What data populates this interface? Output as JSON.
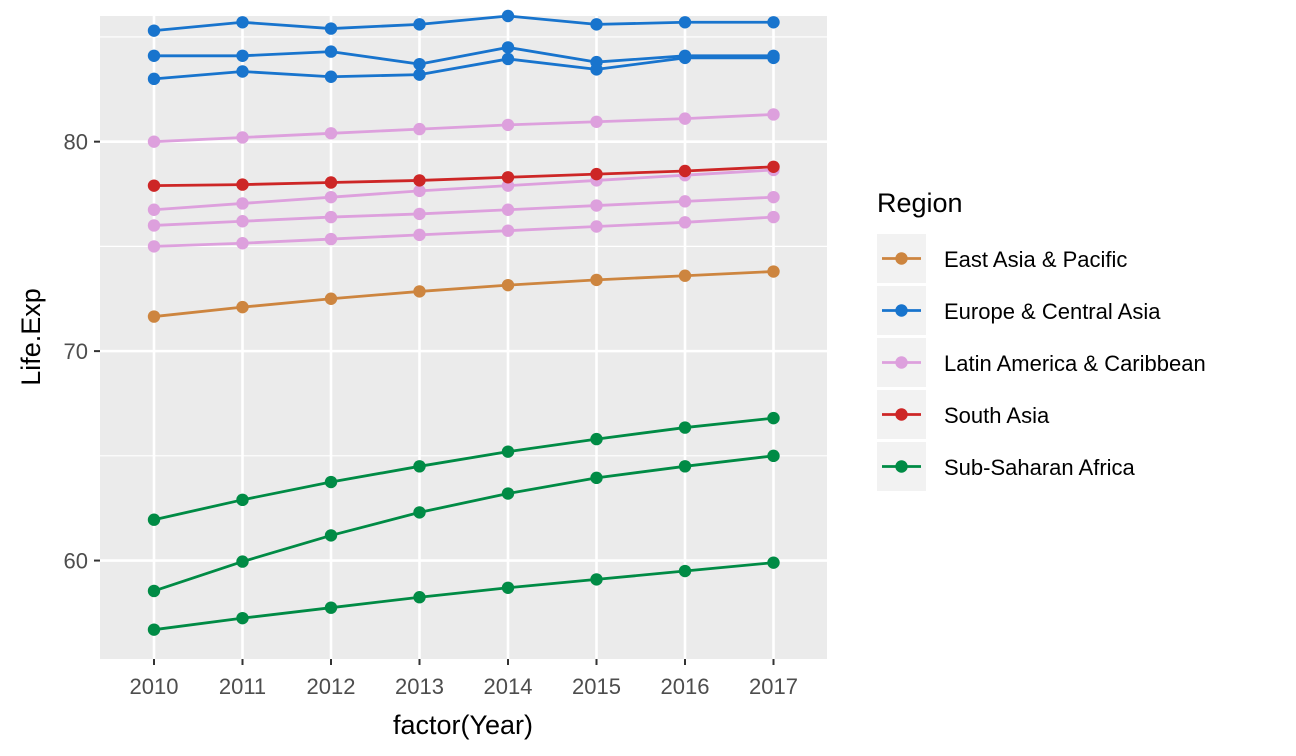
{
  "chart_data": {
    "type": "line",
    "xlabel": "factor(Year)",
    "ylabel": "Life.Exp",
    "categories": [
      "2010",
      "2011",
      "2012",
      "2013",
      "2014",
      "2015",
      "2016",
      "2017"
    ],
    "ylim": [
      55.3,
      86.0
    ],
    "y_ticks": [
      60,
      70,
      80
    ],
    "y_tick_labels": [
      "60",
      "70",
      "80"
    ],
    "grid": true,
    "legend": {
      "title": "Region",
      "position": "right",
      "entries": [
        {
          "label": "East Asia & Pacific",
          "color": "#CD853F"
        },
        {
          "label": "Europe & Central Asia",
          "color": "#1874CD"
        },
        {
          "label": "Latin America & Caribbean",
          "color": "#DDA0DD"
        },
        {
          "label": "South Asia",
          "color": "#CD2626"
        },
        {
          "label": "Sub-Saharan Africa",
          "color": "#008B45"
        }
      ]
    },
    "series": [
      {
        "region": "Latin America & Caribbean",
        "values": [
          80.0,
          80.2,
          80.4,
          80.6,
          80.8,
          80.95,
          81.1,
          81.3
        ]
      },
      {
        "region": "Latin America & Caribbean",
        "values": [
          76.75,
          77.05,
          77.35,
          77.65,
          77.9,
          78.15,
          78.4,
          78.65
        ]
      },
      {
        "region": "Latin America & Caribbean",
        "values": [
          76.0,
          76.2,
          76.4,
          76.55,
          76.75,
          76.95,
          77.15,
          77.35
        ]
      },
      {
        "region": "Latin America & Caribbean",
        "values": [
          75.0,
          75.15,
          75.35,
          75.55,
          75.75,
          75.95,
          76.15,
          76.4
        ]
      },
      {
        "region": "Europe & Central Asia",
        "values": [
          85.3,
          85.7,
          85.4,
          85.6,
          86.0,
          85.6,
          85.7,
          85.7
        ]
      },
      {
        "region": "Europe & Central Asia",
        "values": [
          84.1,
          84.1,
          84.3,
          83.7,
          84.5,
          83.8,
          84.1,
          84.1
        ]
      },
      {
        "region": "Europe & Central Asia",
        "values": [
          83.0,
          83.35,
          83.1,
          83.2,
          83.95,
          83.45,
          84.0,
          84.0
        ]
      },
      {
        "region": "South Asia",
        "values": [
          77.9,
          77.95,
          78.05,
          78.15,
          78.3,
          78.45,
          78.6,
          78.8
        ]
      },
      {
        "region": "East Asia & Pacific",
        "values": [
          71.65,
          72.1,
          72.5,
          72.85,
          73.15,
          73.4,
          73.6,
          73.8
        ]
      },
      {
        "region": "Sub-Saharan Africa",
        "values": [
          61.95,
          62.9,
          63.75,
          64.5,
          65.2,
          65.8,
          66.35,
          66.8
        ]
      },
      {
        "region": "Sub-Saharan Africa",
        "values": [
          58.55,
          59.95,
          61.2,
          62.3,
          63.2,
          63.95,
          64.5,
          65.0
        ]
      },
      {
        "region": "Sub-Saharan Africa",
        "values": [
          56.7,
          57.25,
          57.75,
          58.25,
          58.7,
          59.1,
          59.5,
          59.9
        ]
      }
    ]
  }
}
